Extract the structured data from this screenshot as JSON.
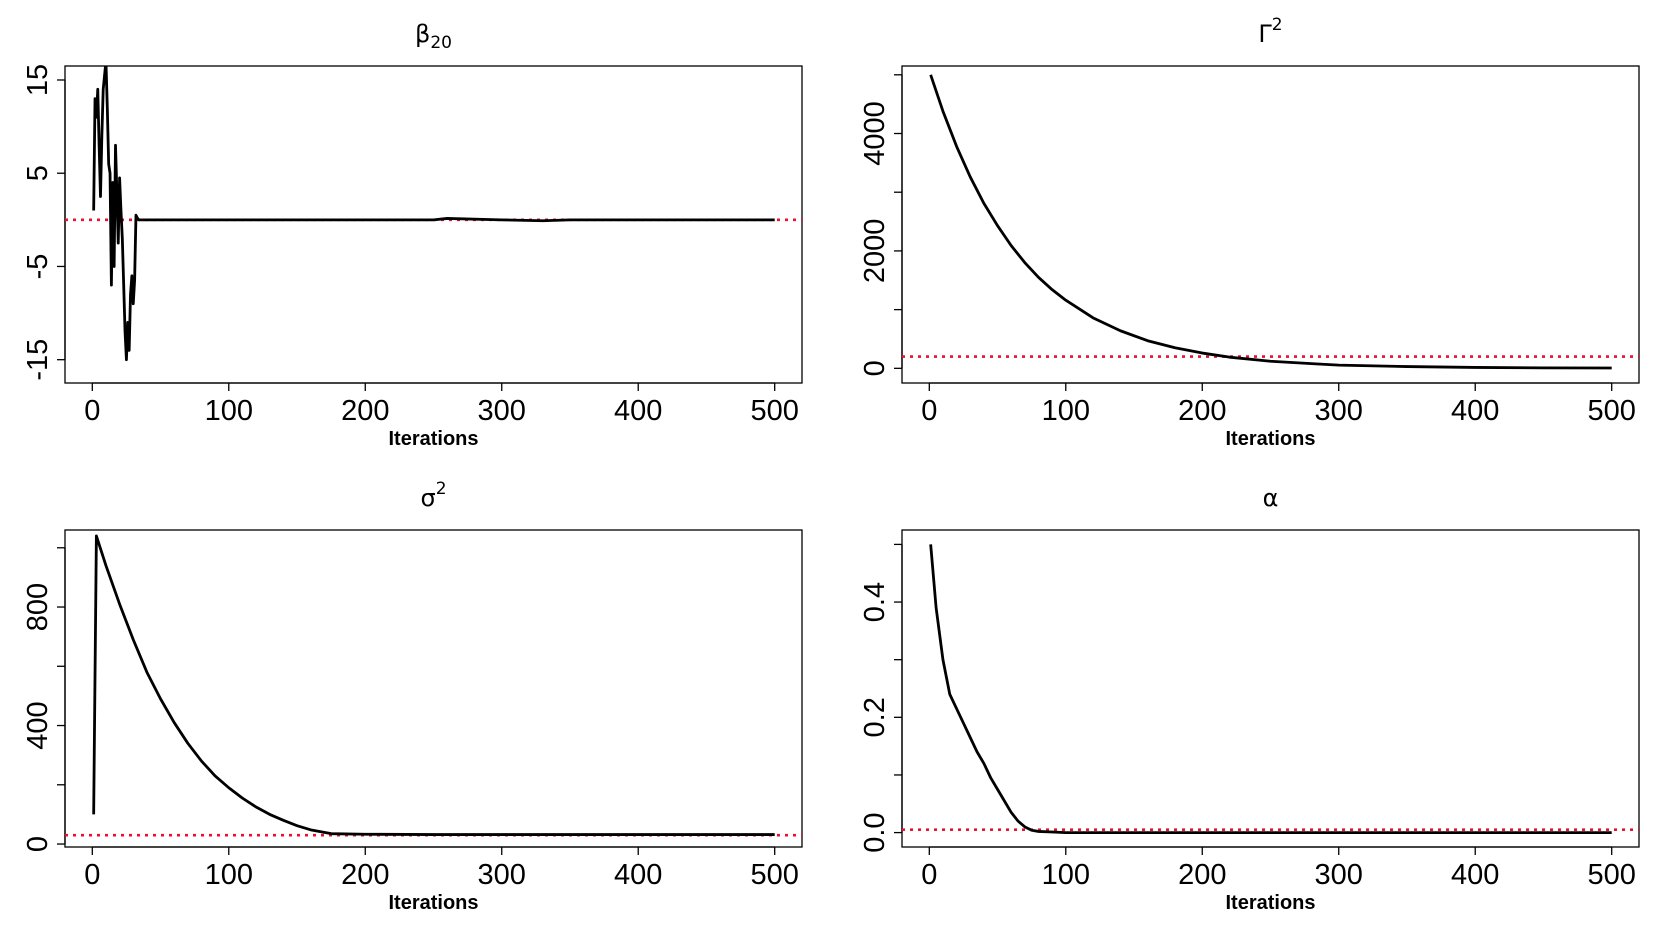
{
  "chart_data": [
    {
      "type": "line",
      "title_main": "β",
      "title_sub": "20",
      "title_sup": "",
      "xlabel": "Iterations",
      "ylabel": "",
      "xlim": [
        -20,
        520
      ],
      "ylim": [
        -17.5,
        16.5
      ],
      "x_ticks": [
        0,
        100,
        200,
        300,
        400,
        500
      ],
      "y_ticks": [
        -15,
        -5,
        5,
        15
      ],
      "y_tick_labels": [
        "-15",
        "-5",
        "5",
        "15"
      ],
      "reference_line": {
        "y": 0,
        "color": "#e8112d",
        "style": "dotted"
      },
      "series": [
        {
          "color": "#000000",
          "x": [
            1,
            2,
            3,
            4,
            5,
            6,
            7,
            8,
            9,
            10,
            11,
            12,
            13,
            14,
            15,
            16,
            17,
            18,
            19,
            20,
            21,
            22,
            23,
            24,
            25,
            26,
            27,
            28,
            29,
            30,
            31,
            32,
            33,
            34,
            35,
            36,
            37,
            40,
            60,
            100,
            150,
            200,
            250,
            260,
            300,
            330,
            350,
            400,
            450,
            500
          ],
          "y": [
            1,
            13,
            11,
            14,
            8,
            2.5,
            9,
            14,
            15.5,
            17,
            12,
            6,
            5,
            -7,
            4,
            -5,
            8,
            3,
            -2.5,
            4.5,
            1,
            -2,
            -7,
            -12,
            -15,
            -11,
            -14,
            -8,
            -6,
            -9,
            -6.5,
            0.5,
            0.2,
            0,
            0,
            0,
            0,
            0,
            0,
            0,
            0,
            0,
            0,
            0.15,
            0,
            -0.1,
            0,
            0,
            0,
            0
          ]
        }
      ]
    },
    {
      "type": "line",
      "title_main": "Γ",
      "title_sub": "",
      "title_sup": "2",
      "xlabel": "Iterations",
      "ylabel": "",
      "xlim": [
        -20,
        520
      ],
      "ylim": [
        -250,
        5150
      ],
      "x_ticks": [
        0,
        100,
        200,
        300,
        400,
        500
      ],
      "y_ticks": [
        0,
        2000,
        4000
      ],
      "y_tick_labels": [
        "0",
        "2000",
        "4000"
      ],
      "y_minor_ticks": [
        1000,
        3000,
        5000
      ],
      "reference_line": {
        "y": 200,
        "color": "#e8112d",
        "style": "dotted"
      },
      "series": [
        {
          "color": "#000000",
          "x": [
            1,
            10,
            20,
            30,
            40,
            50,
            60,
            70,
            80,
            90,
            100,
            120,
            140,
            160,
            180,
            200,
            220,
            250,
            280,
            300,
            350,
            400,
            450,
            500
          ],
          "y": [
            5000,
            4380,
            3780,
            3260,
            2810,
            2430,
            2090,
            1800,
            1550,
            1340,
            1160,
            860,
            640,
            470,
            350,
            260,
            190,
            120,
            80,
            55,
            30,
            15,
            8,
            5
          ]
        }
      ]
    },
    {
      "type": "line",
      "title_main": "σ",
      "title_sub": "",
      "title_sup": "2",
      "xlabel": "Iterations",
      "ylabel": "",
      "xlim": [
        -20,
        520
      ],
      "ylim": [
        -10,
        1060
      ],
      "x_ticks": [
        0,
        100,
        200,
        300,
        400,
        500
      ],
      "y_ticks": [
        0,
        400,
        800
      ],
      "y_tick_labels": [
        "0",
        "400",
        "800"
      ],
      "y_minor_ticks": [
        200,
        600,
        1000
      ],
      "reference_line": {
        "y": 30,
        "color": "#e8112d",
        "style": "dotted"
      },
      "series": [
        {
          "color": "#000000",
          "x": [
            1,
            3,
            10,
            20,
            30,
            40,
            50,
            60,
            70,
            80,
            90,
            100,
            110,
            120,
            130,
            140,
            150,
            160,
            175,
            200,
            250,
            300,
            350,
            400,
            450,
            500
          ],
          "y": [
            100,
            1040,
            940,
            810,
            690,
            580,
            490,
            410,
            340,
            280,
            230,
            190,
            155,
            125,
            100,
            80,
            62,
            48,
            35,
            33,
            32,
            32,
            32,
            32,
            32,
            32
          ]
        }
      ]
    },
    {
      "type": "line",
      "title_main": "α",
      "title_sub": "",
      "title_sup": "",
      "xlabel": "Iterations",
      "ylabel": "",
      "xlim": [
        -20,
        520
      ],
      "ylim": [
        -0.025,
        0.525
      ],
      "x_ticks": [
        0,
        100,
        200,
        300,
        400,
        500
      ],
      "y_ticks": [
        0,
        0.2,
        0.4
      ],
      "y_tick_labels": [
        "0.0",
        "0.2",
        "0.4"
      ],
      "y_minor_ticks": [
        0.1,
        0.3,
        0.5
      ],
      "reference_line": {
        "y": 0.005,
        "color": "#e8112d",
        "style": "dotted"
      },
      "series": [
        {
          "color": "#000000",
          "x": [
            1,
            5,
            10,
            15,
            20,
            25,
            30,
            35,
            40,
            45,
            50,
            55,
            60,
            65,
            70,
            75,
            80,
            90,
            100,
            150,
            200,
            300,
            400,
            500
          ],
          "y": [
            0.5,
            0.39,
            0.3,
            0.24,
            0.215,
            0.19,
            0.165,
            0.14,
            0.12,
            0.095,
            0.075,
            0.055,
            0.035,
            0.02,
            0.01,
            0.004,
            0.002,
            0.001,
            0,
            0,
            0,
            0,
            0,
            0
          ]
        }
      ]
    }
  ]
}
